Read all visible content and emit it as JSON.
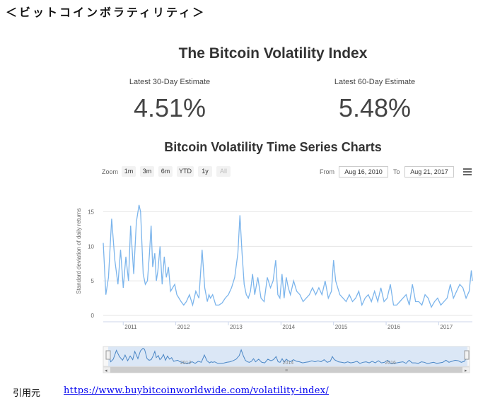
{
  "page_heading": "＜ビットコインボラティリティ＞",
  "title": "The Bitcoin Volatility Index",
  "estimates": [
    {
      "label": "Latest 30-Day Estimate",
      "value": "4.51%"
    },
    {
      "label": "Latest 60-Day Estimate",
      "value": "5.48%"
    }
  ],
  "subtitle": "Bitcoin Volatility Time Series Charts",
  "toolbar": {
    "zoom_label": "Zoom",
    "zoom_buttons": [
      "1m",
      "3m",
      "6m",
      "YTD",
      "1y",
      "All"
    ],
    "from_label": "From",
    "from_value": "Aug 16, 2010",
    "to_label": "To",
    "to_value": "Aug 21, 2017"
  },
  "source": {
    "label": "引用元",
    "url": "https://www.buybitcoinworldwide.com/volatility-index/"
  },
  "chart_data": {
    "type": "line",
    "title": "",
    "xlabel": "",
    "ylabel": "Standard deviation of daily returns",
    "xlim": [
      2010.62,
      2017.64
    ],
    "ylim": [
      0,
      15
    ],
    "y_ticks": [
      0,
      5,
      10,
      15
    ],
    "x_ticks": [
      "2011",
      "2012",
      "2013",
      "2014",
      "2015",
      "2016",
      "2017"
    ],
    "navigator_ticks": [
      "2012",
      "2014",
      "2016"
    ],
    "grid": true,
    "line_color": "#7cb5ec",
    "series": [
      {
        "x": [
          2010.62,
          2010.67,
          2010.72,
          2010.78,
          2010.84,
          2010.9,
          2010.95,
          2011.0,
          2011.05,
          2011.1,
          2011.14,
          2011.2,
          2011.25,
          2011.3,
          2011.33,
          2011.38,
          2011.42,
          2011.46,
          2011.5,
          2011.53,
          2011.56,
          2011.6,
          2011.63,
          2011.66,
          2011.7,
          2011.74,
          2011.78,
          2011.82,
          2011.86,
          2011.9,
          2011.94,
          2011.98,
          2012.02,
          2012.06,
          2012.1,
          2012.15,
          2012.2,
          2012.26,
          2012.32,
          2012.38,
          2012.44,
          2012.5,
          2012.55,
          2012.6,
          2012.63,
          2012.66,
          2012.7,
          2012.76,
          2012.82,
          2012.88,
          2012.94,
          2013.0,
          2013.06,
          2013.12,
          2013.18,
          2013.22,
          2013.26,
          2013.3,
          2013.34,
          2013.38,
          2013.42,
          2013.46,
          2013.5,
          2013.56,
          2013.62,
          2013.68,
          2013.74,
          2013.8,
          2013.85,
          2013.9,
          2013.94,
          2013.98,
          2014.02,
          2014.06,
          2014.1,
          2014.14,
          2014.18,
          2014.24,
          2014.3,
          2014.36,
          2014.42,
          2014.48,
          2014.54,
          2014.6,
          2014.66,
          2014.72,
          2014.78,
          2014.84,
          2014.9,
          2014.96,
          2015.0,
          2015.04,
          2015.08,
          2015.12,
          2015.18,
          2015.24,
          2015.3,
          2015.36,
          2015.42,
          2015.48,
          2015.54,
          2015.6,
          2015.66,
          2015.72,
          2015.78,
          2015.84,
          2015.9,
          2015.96,
          2016.02,
          2016.08,
          2016.14,
          2016.2,
          2016.26,
          2016.32,
          2016.38,
          2016.44,
          2016.5,
          2016.56,
          2016.62,
          2016.68,
          2016.74,
          2016.8,
          2016.86,
          2016.92,
          2016.98,
          2017.04,
          2017.1,
          2017.16,
          2017.22,
          2017.28,
          2017.34,
          2017.4,
          2017.46,
          2017.52,
          2017.58,
          2017.62,
          2017.64
        ],
        "y": [
          10.5,
          3.0,
          5.5,
          14.0,
          8.0,
          4.5,
          9.5,
          4.0,
          8.5,
          5.0,
          13.0,
          6.0,
          13.5,
          16.0,
          15.0,
          6.0,
          4.5,
          5.0,
          9.0,
          13.0,
          7.0,
          9.0,
          5.0,
          6.5,
          10.0,
          4.5,
          8.5,
          5.5,
          7.0,
          3.5,
          4.0,
          4.5,
          3.0,
          2.5,
          2.0,
          1.5,
          2.0,
          3.0,
          1.5,
          3.5,
          2.5,
          9.5,
          4.0,
          2.0,
          3.0,
          2.5,
          3.0,
          1.5,
          1.5,
          1.8,
          2.5,
          3.0,
          4.0,
          5.5,
          9.0,
          14.5,
          9.0,
          4.5,
          3.0,
          2.5,
          3.5,
          6.0,
          3.0,
          5.5,
          2.5,
          2.0,
          5.5,
          4.0,
          5.0,
          8.0,
          3.0,
          2.5,
          6.0,
          2.5,
          5.5,
          4.0,
          3.0,
          5.0,
          3.5,
          3.0,
          2.0,
          2.5,
          3.0,
          4.0,
          3.0,
          4.0,
          3.0,
          5.0,
          2.5,
          3.5,
          8.0,
          5.0,
          4.0,
          3.0,
          2.5,
          2.0,
          3.0,
          2.0,
          2.5,
          3.5,
          1.5,
          2.5,
          3.0,
          2.0,
          3.5,
          2.0,
          4.0,
          2.0,
          2.5,
          4.5,
          1.5,
          1.5,
          2.0,
          2.5,
          3.0,
          1.5,
          4.5,
          2.0,
          2.0,
          1.5,
          3.0,
          2.5,
          1.2,
          2.0,
          2.5,
          1.5,
          2.0,
          2.5,
          4.5,
          2.5,
          3.5,
          4.5,
          4.0,
          2.5,
          3.5,
          6.5,
          5.0
        ]
      }
    ]
  }
}
